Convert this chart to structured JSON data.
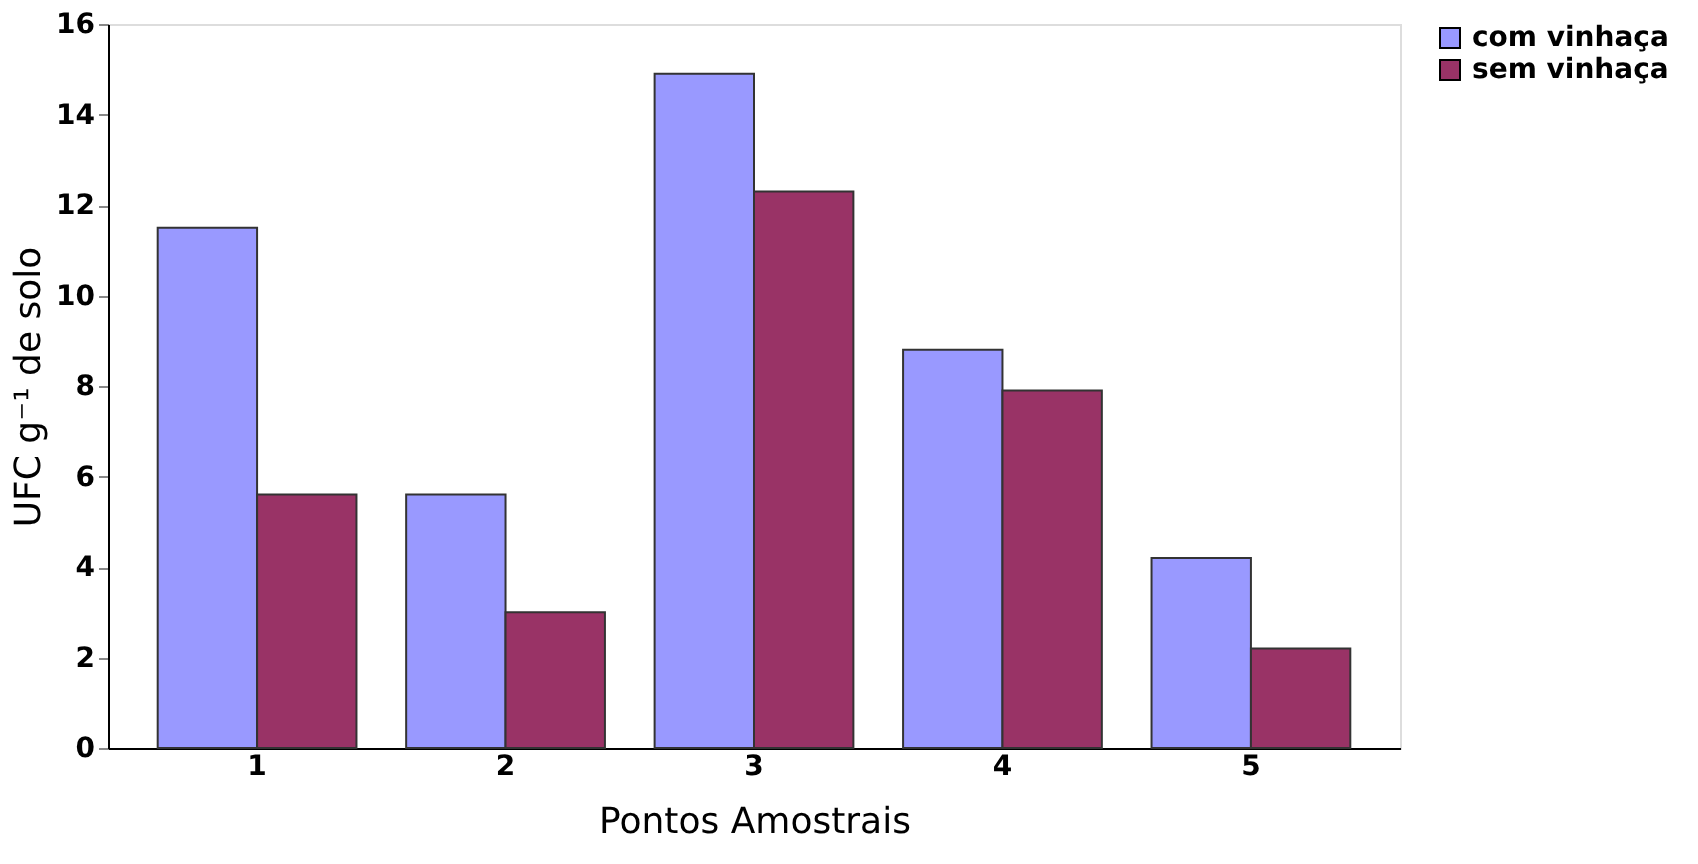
{
  "chart_data": {
    "type": "bar",
    "xlabel": "Pontos Amostrais",
    "ylabel": "UFC g⁻¹ de solo",
    "categories": [
      "1",
      "2",
      "3",
      "4",
      "5"
    ],
    "series": [
      {
        "name": "com vinhaça",
        "color": "#9999ff",
        "values": [
          11.5,
          5.6,
          14.9,
          8.8,
          4.2
        ]
      },
      {
        "name": "sem vinhaça",
        "color": "#993366",
        "values": [
          5.6,
          3.0,
          12.3,
          7.9,
          2.2
        ]
      }
    ],
    "ylim": [
      0,
      16
    ],
    "yticks": [
      0,
      2,
      4,
      6,
      8,
      10,
      12,
      14,
      16
    ],
    "grid": false,
    "legend": "right"
  }
}
